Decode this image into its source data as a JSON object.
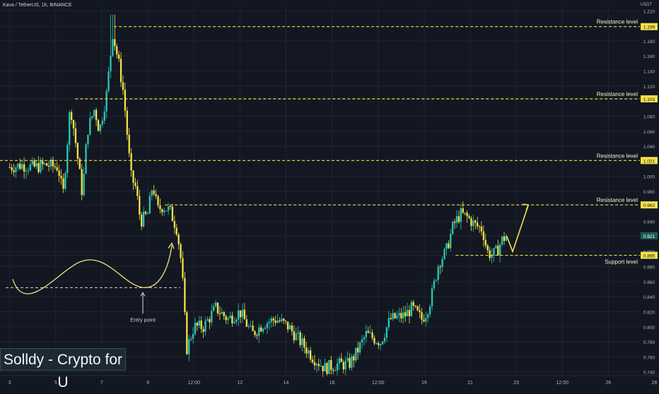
{
  "header": {
    "symbol_title": "Kava / TetherUS, 1h, BINANCE",
    "currency": "USDT"
  },
  "watermark": "Solldy - Crypto for U",
  "annotations": {
    "entry_point": "Entry point"
  },
  "colors": {
    "background": "#131722",
    "up_candle": "#2bc6b3",
    "down_candle": "#f5e14b",
    "level_line": "#f0de3b",
    "arrow": "#f5e14b",
    "curve": "#f0e57a",
    "axis_text": "#b2b5be",
    "current_price_badge": "#1b5e5a"
  },
  "chart_data": {
    "type": "candlestick",
    "y_tick_labels": [
      "1.220",
      "1.199",
      "1.180",
      "1.160",
      "1.140",
      "1.120",
      "1.103",
      "1.080",
      "1.060",
      "1.040",
      "1.021",
      "1.000",
      "0.980",
      "0.962",
      "0.940",
      "0.921",
      "0.900",
      "0.895",
      "0.880",
      "0.860",
      "0.840",
      "0.820",
      "0.800",
      "0.780",
      "0.760",
      "0.740"
    ],
    "x_tick_labels": [
      "3",
      "5",
      "7",
      "9",
      "12:00",
      "12",
      "14",
      "16",
      "12:00",
      "19",
      "21",
      "23",
      "12:00",
      "26",
      "28"
    ],
    "ylim": [
      0.735,
      1.225
    ],
    "current_price": "0.921",
    "levels": [
      {
        "label": "Resistance level",
        "value": 1.199,
        "price_label": "1.199"
      },
      {
        "label": "Resistance level",
        "value": 1.103,
        "price_label": "1.103"
      },
      {
        "label": "Resistance level",
        "value": 1.021,
        "price_label": "1.021"
      },
      {
        "label": "Resistance level",
        "value": 0.962,
        "price_label": "0.962"
      },
      {
        "label": "Support level",
        "value": 0.895,
        "price_label": "0.895"
      }
    ],
    "price_path": [
      [
        3.0,
        1.012
      ],
      [
        3.5,
        1.015
      ],
      [
        4.0,
        1.012
      ],
      [
        4.5,
        1.015
      ],
      [
        5.0,
        1.012
      ],
      [
        5.2,
        0.975
      ],
      [
        5.5,
        1.095
      ],
      [
        5.7,
        1.05
      ],
      [
        6.0,
        0.975
      ],
      [
        6.2,
        1.06
      ],
      [
        6.5,
        1.09
      ],
      [
        6.7,
        1.06
      ],
      [
        7.0,
        1.11
      ],
      [
        7.25,
        1.19
      ],
      [
        7.5,
        1.15
      ],
      [
        7.7,
        1.11
      ],
      [
        8.0,
        1.0
      ],
      [
        8.2,
        0.985
      ],
      [
        8.4,
        0.94
      ],
      [
        8.7,
        0.95
      ],
      [
        8.9,
        0.99
      ],
      [
        9.1,
        0.955
      ],
      [
        9.3,
        0.96
      ],
      [
        9.6,
        0.955
      ],
      [
        9.9,
        0.93
      ],
      [
        10.1,
        0.88
      ],
      [
        10.3,
        0.77
      ],
      [
        10.6,
        0.8
      ],
      [
        11.0,
        0.8
      ],
      [
        11.5,
        0.825
      ],
      [
        12.0,
        0.81
      ],
      [
        12.5,
        0.82
      ],
      [
        13.0,
        0.79
      ],
      [
        13.5,
        0.805
      ],
      [
        14.0,
        0.81
      ],
      [
        14.5,
        0.8
      ],
      [
        15.0,
        0.78
      ],
      [
        15.5,
        0.76
      ],
      [
        16.0,
        0.745
      ],
      [
        16.5,
        0.75
      ],
      [
        17.0,
        0.75
      ],
      [
        17.3,
        0.765
      ],
      [
        17.7,
        0.79
      ],
      [
        18.3,
        0.78
      ],
      [
        18.7,
        0.81
      ],
      [
        19.3,
        0.815
      ],
      [
        19.6,
        0.825
      ],
      [
        20.0,
        0.81
      ],
      [
        20.2,
        0.82
      ],
      [
        20.4,
        0.84
      ],
      [
        20.7,
        0.885
      ],
      [
        21.0,
        0.9
      ],
      [
        21.3,
        0.935
      ],
      [
        21.6,
        0.95
      ],
      [
        21.9,
        0.945
      ],
      [
        22.2,
        0.935
      ],
      [
        22.5,
        0.93
      ],
      [
        22.7,
        0.9
      ],
      [
        22.9,
        0.895
      ],
      [
        23.1,
        0.9
      ],
      [
        23.3,
        0.915
      ],
      [
        23.5,
        0.921
      ]
    ],
    "projection": [
      [
        23.5,
        0.921
      ],
      [
        23.75,
        0.9
      ],
      [
        24.4,
        0.962
      ]
    ],
    "entry_curve_y_level": 0.852
  }
}
